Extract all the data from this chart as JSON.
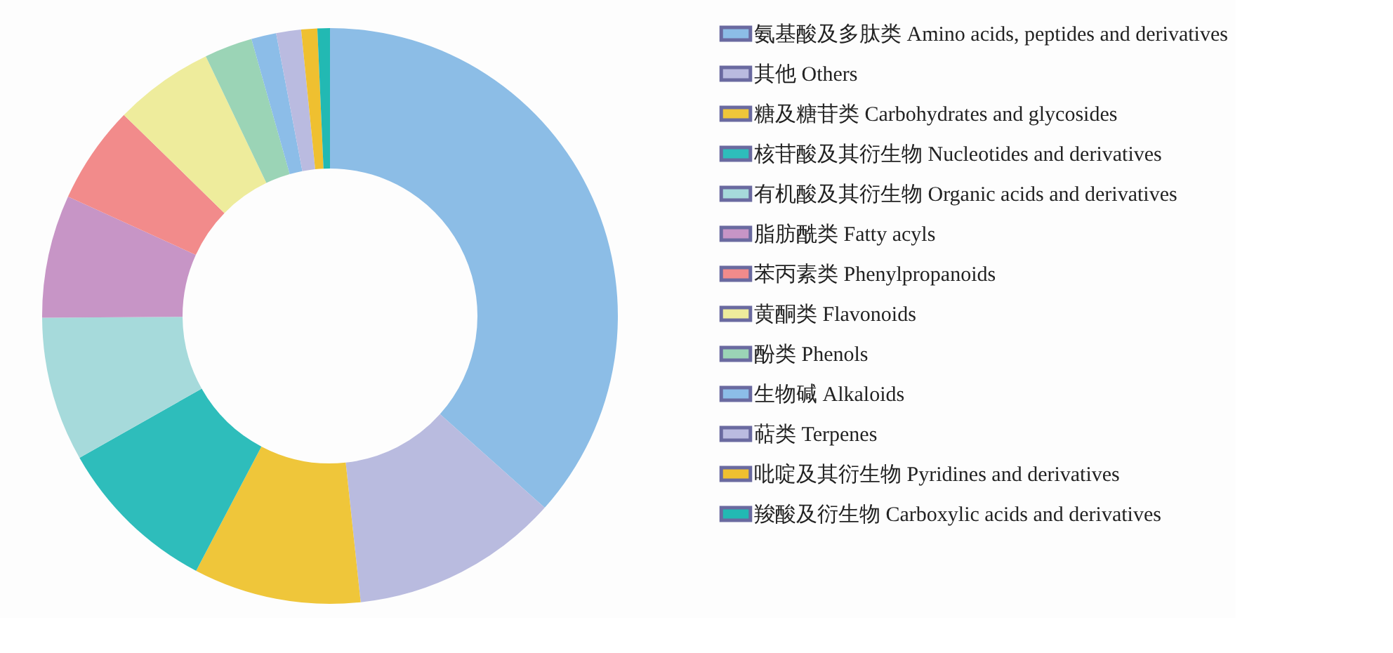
{
  "chart_data": {
    "type": "donut",
    "categories": [
      "氨基酸及多肽类 Amino acids, peptides and derivatives",
      "其他 Others",
      "糖及糖苷类 Carbohydrates and glycosides",
      "核苷酸及其衍生物 Nucleotides and derivatives",
      "有机酸及其衍生物 Organic acids and derivatives",
      "脂肪酰类 Fatty acyls",
      "苯丙素类 Phenylpropanoids",
      "黄酮类 Flavonoids",
      "酚类 Phenols",
      "生物碱 Alkaloids",
      "萜类 Terpenes",
      "吡啶及其衍生物 Pyridines and derivatives",
      "羧酸及衍生物 Carboxylic acids and derivatives"
    ],
    "values": [
      36.6,
      11.7,
      9.4,
      9.1,
      8.1,
      6.9,
      5.5,
      5.6,
      2.7,
      1.4,
      1.4,
      0.9,
      0.7
    ],
    "colors": [
      "#8cbde6",
      "#b9bbdf",
      "#efc63a",
      "#2ebdbb",
      "#a6dadb",
      "#c795c6",
      "#f28b8b",
      "#eeec9c",
      "#9bd4b6",
      "#8cbde8",
      "#babbe0",
      "#efc030",
      "#22b9b3"
    ],
    "legend": "right"
  }
}
